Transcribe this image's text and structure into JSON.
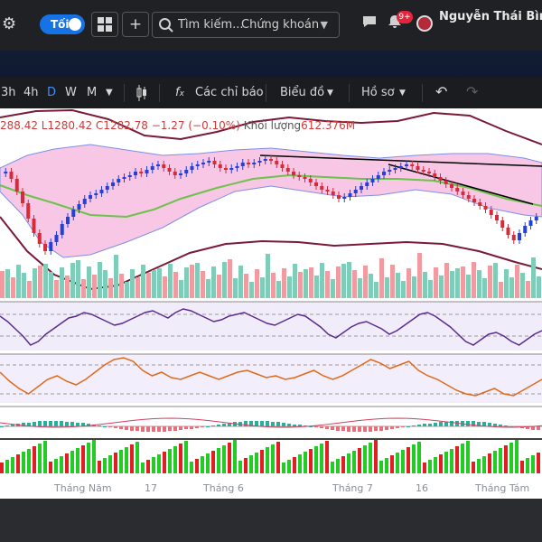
{
  "topbar": {
    "theme_toggle_label": "Tối",
    "search_placeholder": "Tìm kiếm...",
    "search_category": "Chứng khoán",
    "notification_count": "9+",
    "user_name": "Nguyễn Thái Bình -"
  },
  "toolbar": {
    "timeframes": [
      "3h",
      "4h",
      "D",
      "W",
      "M"
    ],
    "active_timeframe": "D",
    "indicators_label": "Các chỉ báo",
    "chart_label": "Biểu đồ",
    "profile_label": "Hồ sơ"
  },
  "legend": {
    "ohlc_text": "288.42  L1280.42  C1282.78  −1.27 (−0.10%)",
    "volume_label": "Khối lượng",
    "volume_value": "612.376M"
  },
  "chart_data": {
    "type": "candlestick",
    "x_axis_labels": [
      "Tháng Năm",
      "17",
      "Tháng 6",
      "Tháng 7",
      "16",
      "Tháng Tám"
    ],
    "last_close": 1282.78,
    "change": -1.27,
    "change_percent": -0.1,
    "low": 1280.42,
    "volume": "612.376M",
    "colors": {
      "up": "#2340d8",
      "down": "#d62b3a",
      "bb_fill": "#f8c7e6",
      "bb_band": "#7e8fe6",
      "envelope": "#7a1a36",
      "middle_line": "#6cc24a",
      "trendline": "#000000",
      "rsi_line": "#5a2b8c",
      "stoch_line": "#e06a1a",
      "vol_up": "#7dcdb8",
      "vol_down": "#f39aa0",
      "hist_up": "#22cc22",
      "hist_down": "#e02020"
    }
  }
}
